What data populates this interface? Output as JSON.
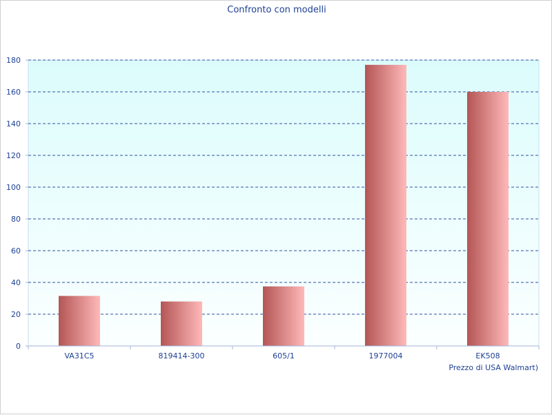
{
  "chart_data": {
    "type": "bar",
    "title": "Confronto con modelli",
    "xlabel": "Prezzo di USA Walmart)",
    "ylabel": "",
    "categories": [
      "VA31C5",
      "819414-300",
      "605/1",
      "1977004",
      "EK508"
    ],
    "values": [
      31.5,
      28,
      37.5,
      177,
      160
    ],
    "ylim": [
      0,
      180
    ],
    "yticks": [
      "0",
      "20",
      "40",
      "60",
      "80",
      "100",
      "120",
      "140",
      "160",
      "180"
    ],
    "grid": true,
    "legend": "none",
    "colors": {
      "plot_bg_top": "#dcfcfc",
      "plot_bg_bottom": "#fbffff",
      "bar_dark": "#b45555",
      "bar_light": "#ffb9b9",
      "grid": "#2b4f9e",
      "text": "#1c3f94",
      "axis": "#9fb6d8"
    }
  }
}
